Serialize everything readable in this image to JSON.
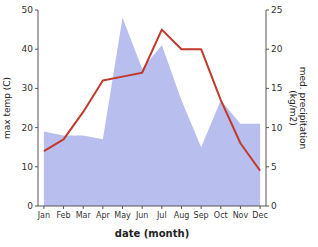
{
  "chart_data": {
    "type": "line",
    "xlabel": "date (month)",
    "ylabel": "max temp (C)",
    "y2label": "med. precipitation\n(kg/m2)",
    "categories": [
      "Jan",
      "Feb",
      "Mar",
      "Apr",
      "May",
      "Jun",
      "Jul",
      "Aug",
      "Sep",
      "Oct",
      "Nov",
      "Dec"
    ],
    "series": [
      {
        "type": "area",
        "axis": "y2",
        "color": "#b8bfee",
        "values": [
          9.5,
          9,
          9,
          8.5,
          24,
          17.5,
          20.5,
          13.5,
          7.5,
          13.5,
          10.5,
          10.5
        ]
      },
      {
        "type": "line",
        "color": "#c0392b",
        "values": [
          14,
          17,
          24,
          32,
          33,
          34,
          45,
          40,
          40,
          27,
          16,
          9
        ]
      }
    ],
    "ylim": [
      0,
      50
    ],
    "yticks": [
      0,
      10,
      20,
      30,
      40,
      50
    ],
    "y2lim": [
      0,
      25
    ],
    "y2ticks": [
      0,
      5,
      10,
      15,
      20,
      25
    ]
  }
}
